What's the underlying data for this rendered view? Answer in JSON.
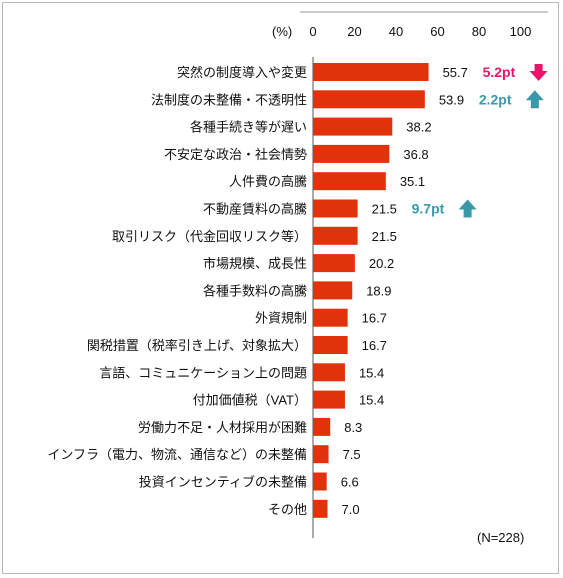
{
  "chart_data": {
    "type": "bar",
    "orientation": "horizontal",
    "unit_label": "(%)",
    "xlim": [
      0,
      100
    ],
    "x_ticks": [
      "0",
      "20",
      "40",
      "60",
      "80",
      "100"
    ],
    "grid": false,
    "bar_color": "#e0330b",
    "categories": [
      "突然の制度導入や変更",
      "法制度の未整備・不透明性",
      "各種手続き等が遅い",
      "不安定な政治・社会情勢",
      "人件費の高騰",
      "不動産賃料の高騰",
      "取引リスク（代金回収リスク等）",
      "市場規模、成長性",
      "各種手数料の高騰",
      "外資規制",
      "関税措置（税率引き上げ、対象拡大）",
      "言語、コミュニケーション上の問題",
      "付加価値税（VAT）",
      "労働力不足・人材採用が困難",
      "インフラ（電力、物流、通信など）の未整備",
      "投資インセンティブの未整備",
      "その他"
    ],
    "values": [
      55.7,
      53.9,
      38.2,
      36.8,
      35.1,
      21.5,
      21.5,
      20.2,
      18.9,
      16.7,
      16.7,
      15.4,
      15.4,
      8.3,
      7.5,
      6.6,
      7.0
    ],
    "value_labels": [
      "55.7",
      "53.9",
      "38.2",
      "36.8",
      "35.1",
      "21.5",
      "21.5",
      "20.2",
      "18.9",
      "16.7",
      "16.7",
      "15.4",
      "15.4",
      "8.3",
      "7.5",
      "6.6",
      "7.0"
    ],
    "annotations": [
      {
        "category_index": 0,
        "text": "5.2pt",
        "direction": "down",
        "color": "#e8156b"
      },
      {
        "category_index": 1,
        "text": "2.2pt",
        "direction": "up",
        "color": "#3a98a8"
      },
      {
        "category_index": 5,
        "text": "9.7pt",
        "direction": "up",
        "color": "#3a98a8"
      }
    ],
    "note": "(N=228)"
  }
}
